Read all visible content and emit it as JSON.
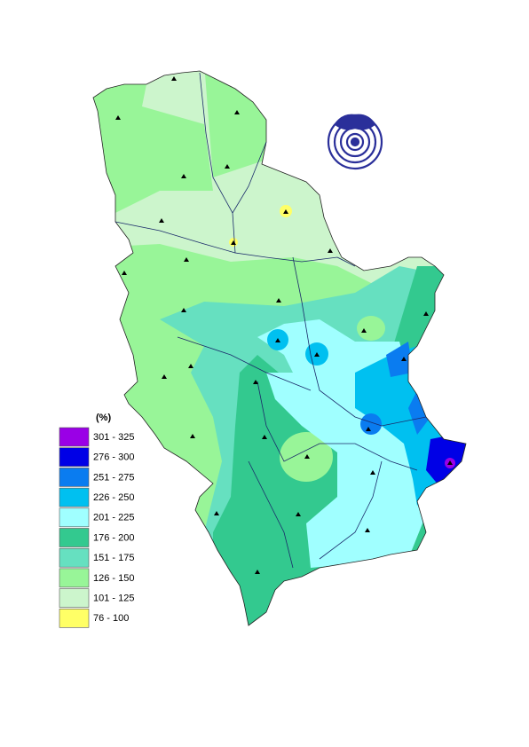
{
  "legend": {
    "title": "(%)",
    "items": [
      {
        "label": "301 - 325",
        "color": "#9a00e6"
      },
      {
        "label": "276 - 300",
        "color": "#0000e6"
      },
      {
        "label": "251 - 275",
        "color": "#0a7cf0"
      },
      {
        "label": "226 - 250",
        "color": "#00c0f0"
      },
      {
        "label": "201 - 225",
        "color": "#a0ffff"
      },
      {
        "label": "176 - 200",
        "color": "#33c98f"
      },
      {
        "label": "151 - 175",
        "color": "#66e0c0"
      },
      {
        "label": "126 - 150",
        "color": "#98f598"
      },
      {
        "label": "101 - 125",
        "color": "#ccf5cc"
      },
      {
        "label": "76 - 100",
        "color": "#ffff66"
      }
    ]
  }
}
